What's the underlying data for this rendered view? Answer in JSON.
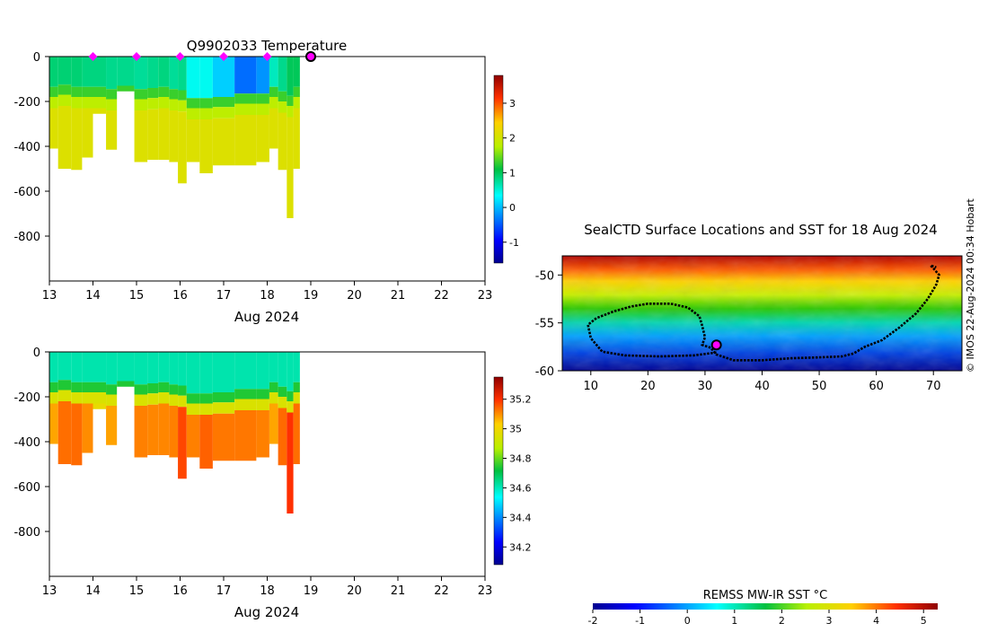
{
  "footer_credit": "© IMOS 22-Aug-2024 00:34 Hobart",
  "colors": {
    "marker_magenta": "#ff00ff",
    "track_black": "#000000",
    "no_data": "#ffffff"
  },
  "chart_data": [
    {
      "type": "heatmap",
      "name": "temperature-section",
      "title": "Q9902033  Temperature",
      "xlabel": "Aug 2024",
      "xlim": [
        13,
        23
      ],
      "xticks": [
        "13",
        "14",
        "15",
        "16",
        "17",
        "18",
        "19",
        "20",
        "21",
        "22",
        "23"
      ],
      "ylim": [
        -1000,
        0
      ],
      "yticks": [
        "0",
        "-200",
        "-400",
        "-600",
        "-800"
      ],
      "colormap": "jet",
      "clim": [
        -1.6,
        3.8
      ],
      "colorbar_ticks": [
        "-1",
        "0",
        "1",
        "2",
        "3"
      ],
      "profile_markers_x": [
        14,
        15,
        16,
        17,
        18
      ],
      "current_profile_x": 19,
      "profiles": [
        {
          "x": 13.0,
          "max_depth": 410,
          "surface_temp": 0.9,
          "thermocline_depth": 150
        },
        {
          "x": 13.2,
          "max_depth": 500,
          "surface_temp": 0.9,
          "thermocline_depth": 140
        },
        {
          "x": 13.5,
          "max_depth": 505,
          "surface_temp": 0.9,
          "thermocline_depth": 150
        },
        {
          "x": 13.75,
          "max_depth": 450,
          "surface_temp": 0.85,
          "thermocline_depth": 150
        },
        {
          "x": 14.0,
          "max_depth": 255,
          "surface_temp": 0.85,
          "thermocline_depth": 150
        },
        {
          "x": 14.3,
          "max_depth": 415,
          "surface_temp": 0.8,
          "thermocline_depth": 160
        },
        {
          "x": 14.55,
          "max_depth": 155,
          "surface_temp": 0.8,
          "thermocline_depth": 145
        },
        {
          "x": 14.95,
          "max_depth": 470,
          "surface_temp": 0.75,
          "thermocline_depth": 160
        },
        {
          "x": 15.25,
          "max_depth": 460,
          "surface_temp": 0.8,
          "thermocline_depth": 155
        },
        {
          "x": 15.5,
          "max_depth": 460,
          "surface_temp": 0.85,
          "thermocline_depth": 150
        },
        {
          "x": 15.75,
          "max_depth": 470,
          "surface_temp": 0.75,
          "thermocline_depth": 160
        },
        {
          "x": 15.95,
          "max_depth": 565,
          "surface_temp": 0.8,
          "thermocline_depth": 165
        },
        {
          "x": 16.15,
          "max_depth": 470,
          "surface_temp": 0.4,
          "thermocline_depth": 200
        },
        {
          "x": 16.45,
          "max_depth": 520,
          "surface_temp": 0.4,
          "thermocline_depth": 200
        },
        {
          "x": 16.75,
          "max_depth": 485,
          "surface_temp": 0.1,
          "thermocline_depth": 195
        },
        {
          "x": 17.25,
          "max_depth": 485,
          "surface_temp": -0.4,
          "thermocline_depth": 180
        },
        {
          "x": 17.75,
          "max_depth": 470,
          "surface_temp": -0.2,
          "thermocline_depth": 180
        },
        {
          "x": 18.05,
          "max_depth": 410,
          "surface_temp": 0.6,
          "thermocline_depth": 150
        },
        {
          "x": 18.25,
          "max_depth": 505,
          "surface_temp": 0.8,
          "thermocline_depth": 170
        },
        {
          "x": 18.45,
          "max_depth": 720,
          "surface_temp": 1.0,
          "thermocline_depth": 190
        },
        {
          "x": 18.6,
          "max_depth": 500,
          "surface_temp": 1.0,
          "thermocline_depth": 150
        }
      ]
    },
    {
      "type": "heatmap",
      "name": "salinity-section",
      "xlabel": "Aug 2024",
      "xlim": [
        13,
        23
      ],
      "xticks": [
        "13",
        "14",
        "15",
        "16",
        "17",
        "18",
        "19",
        "20",
        "21",
        "22",
        "23"
      ],
      "ylim": [
        -1000,
        0
      ],
      "yticks": [
        "0",
        "-200",
        "-400",
        "-600",
        "-800"
      ],
      "colormap": "jet",
      "clim": [
        34.08,
        35.35
      ],
      "colorbar_ticks": [
        "34.2",
        "34.4",
        "34.6",
        "34.8",
        "35",
        "35.2"
      ],
      "profiles_same_as": "temperature-section"
    },
    {
      "type": "heatmap",
      "name": "surface-sst-map",
      "title": "SealCTD Surface Locations and SST for 18 Aug 2024",
      "xlim": [
        5,
        75
      ],
      "xticks": [
        "10",
        "20",
        "30",
        "40",
        "50",
        "60",
        "70"
      ],
      "ylim": [
        -60,
        -48
      ],
      "yticks": [
        "-50",
        "-55",
        "-60"
      ],
      "colorbar_label": "REMSS MW-IR SST °C",
      "clim": [
        -2,
        5.3
      ],
      "colorbar_ticks": [
        "-2",
        "-1",
        "0",
        "1",
        "2",
        "3",
        "4",
        "5"
      ],
      "track": [
        [
          32,
          -58.1
        ],
        [
          28,
          -58.4
        ],
        [
          22,
          -58.5
        ],
        [
          16,
          -58.4
        ],
        [
          12,
          -58.0
        ],
        [
          10,
          -56.6
        ],
        [
          9.5,
          -55.2
        ],
        [
          11,
          -54.5
        ],
        [
          14,
          -53.8
        ],
        [
          17,
          -53.3
        ],
        [
          20,
          -53.0
        ],
        [
          24,
          -53.0
        ],
        [
          27,
          -53.4
        ],
        [
          29,
          -54.3
        ],
        [
          29.5,
          -55.3
        ],
        [
          30,
          -56.5
        ],
        [
          29.5,
          -57.3
        ],
        [
          31,
          -57.6
        ],
        [
          32,
          -58.3
        ],
        [
          35,
          -58.9
        ],
        [
          40,
          -58.9
        ],
        [
          45,
          -58.7
        ],
        [
          50,
          -58.6
        ],
        [
          54,
          -58.5
        ],
        [
          56,
          -58.2
        ],
        [
          58,
          -57.5
        ],
        [
          61,
          -56.8
        ],
        [
          64,
          -55.5
        ],
        [
          67,
          -54.0
        ],
        [
          69,
          -52.5
        ],
        [
          70.5,
          -51.0
        ],
        [
          71,
          -50.0
        ],
        [
          70,
          -49.3
        ],
        [
          69.5,
          -49.0
        ],
        [
          70.5,
          -49.2
        ]
      ],
      "current_location": [
        32,
        -57.3
      ]
    }
  ]
}
